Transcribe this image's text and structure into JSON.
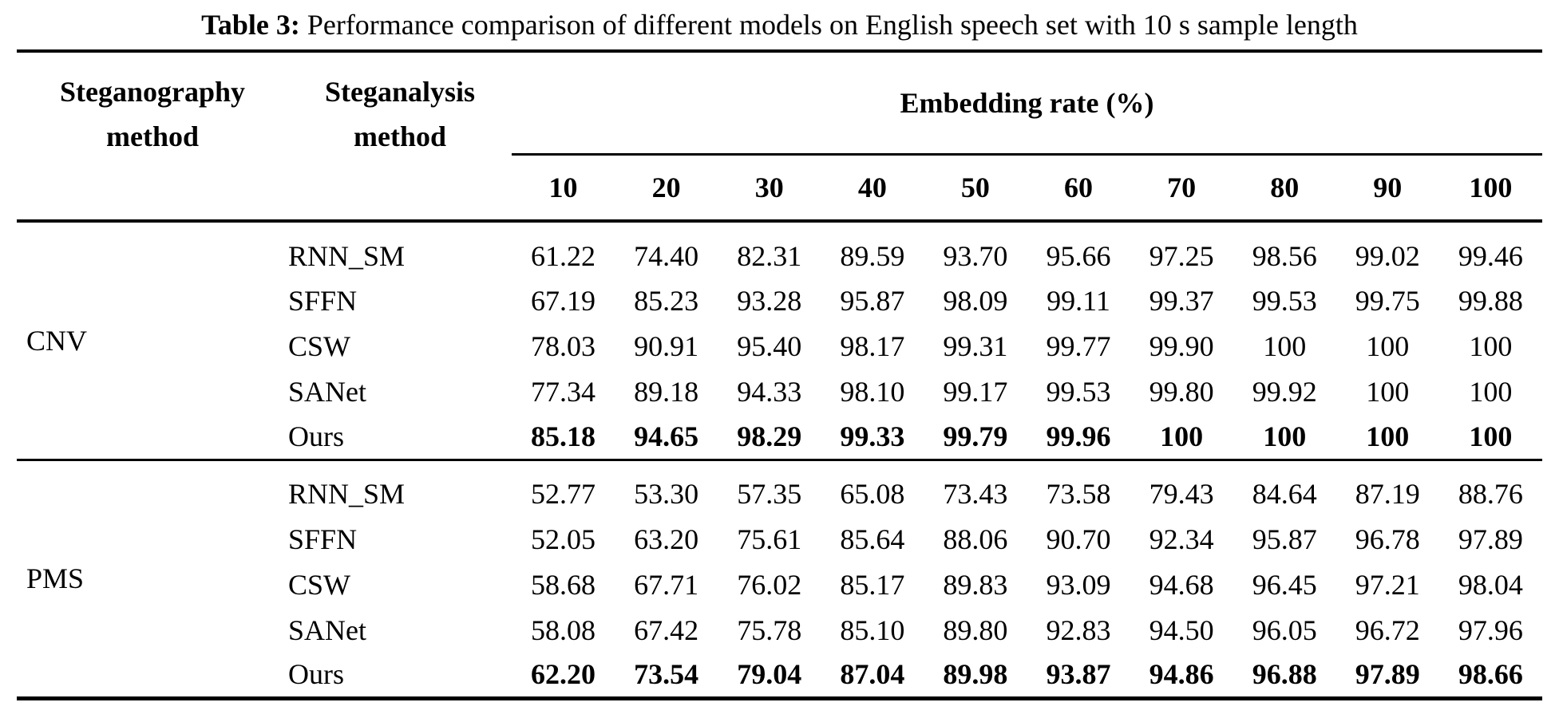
{
  "title": {
    "label": "Table 3:",
    "text": "Performance comparison of different models on English speech set with 10 s sample length"
  },
  "table": {
    "col1_header": "Steganography method",
    "col2_header": "Steganalysis method",
    "span_header": "Embedding rate (%)",
    "rate_columns": [
      "10",
      "20",
      "30",
      "40",
      "50",
      "60",
      "70",
      "80",
      "90",
      "100"
    ],
    "groups": [
      {
        "name": "CNV",
        "rows": [
          {
            "method": "RNN_SM",
            "values": [
              "61.22",
              "74.40",
              "82.31",
              "89.59",
              "93.70",
              "95.66",
              "97.25",
              "98.56",
              "99.02",
              "99.46"
            ]
          },
          {
            "method": "SFFN",
            "values": [
              "67.19",
              "85.23",
              "93.28",
              "95.87",
              "98.09",
              "99.11",
              "99.37",
              "99.53",
              "99.75",
              "99.88"
            ]
          },
          {
            "method": "CSW",
            "values": [
              "78.03",
              "90.91",
              "95.40",
              "98.17",
              "99.31",
              "99.77",
              "99.90",
              "100",
              "100",
              "100"
            ]
          },
          {
            "method": "SANet",
            "values": [
              "77.34",
              "89.18",
              "94.33",
              "98.10",
              "99.17",
              "99.53",
              "99.80",
              "99.92",
              "100",
              "100"
            ]
          },
          {
            "method": "Ours",
            "values": [
              "85.18",
              "94.65",
              "98.29",
              "99.33",
              "99.79",
              "99.96",
              "100",
              "100",
              "100",
              "100"
            ]
          }
        ]
      },
      {
        "name": "PMS",
        "rows": [
          {
            "method": "RNN_SM",
            "values": [
              "52.77",
              "53.30",
              "57.35",
              "65.08",
              "73.43",
              "73.58",
              "79.43",
              "84.64",
              "87.19",
              "88.76"
            ]
          },
          {
            "method": "SFFN",
            "values": [
              "52.05",
              "63.20",
              "75.61",
              "85.64",
              "88.06",
              "90.70",
              "92.34",
              "95.87",
              "96.78",
              "97.89"
            ]
          },
          {
            "method": "CSW",
            "values": [
              "58.68",
              "67.71",
              "76.02",
              "85.17",
              "89.83",
              "93.09",
              "94.68",
              "96.45",
              "97.21",
              "98.04"
            ]
          },
          {
            "method": "SANet",
            "values": [
              "58.08",
              "67.42",
              "75.78",
              "85.10",
              "89.80",
              "92.83",
              "94.50",
              "96.05",
              "96.72",
              "97.96"
            ]
          },
          {
            "method": "Ours",
            "values": [
              "62.20",
              "73.54",
              "79.04",
              "87.04",
              "89.98",
              "93.87",
              "94.86",
              "96.88",
              "97.89",
              "98.66"
            ]
          }
        ]
      }
    ]
  }
}
